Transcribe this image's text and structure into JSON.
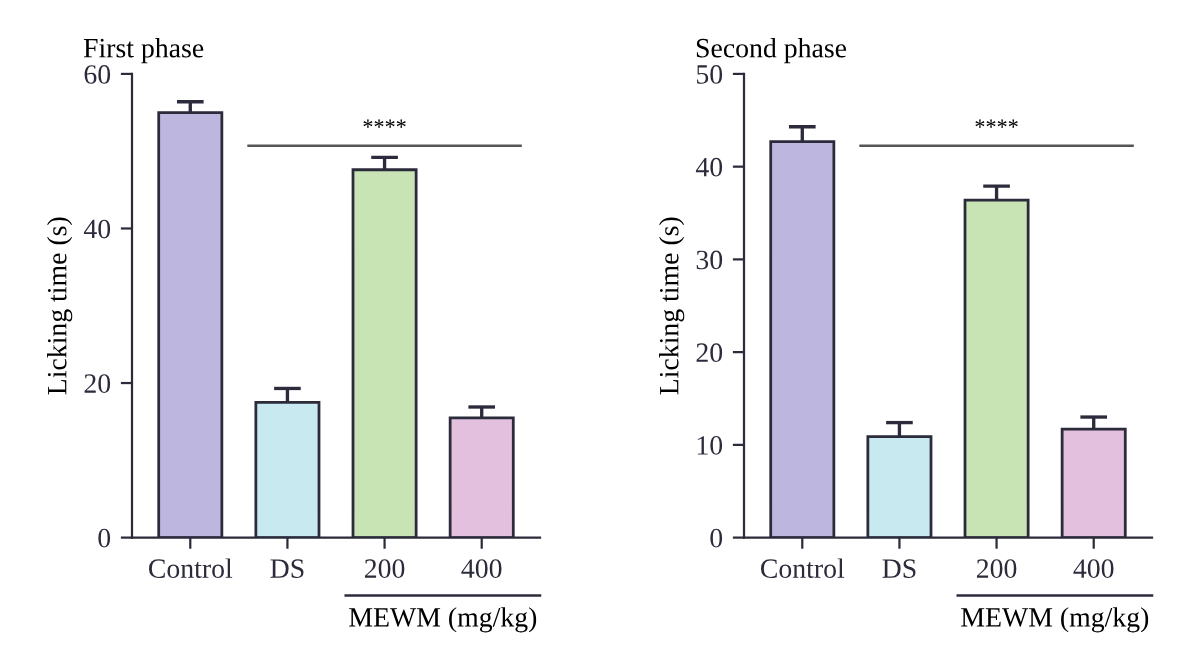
{
  "chart_data": [
    {
      "type": "bar",
      "title": "First phase",
      "ylabel": "Licking time (s)",
      "categories": [
        "Control",
        "DS",
        "200",
        "400"
      ],
      "values": [
        55,
        17.5,
        47.6,
        15.5
      ],
      "colors": [
        "#bdb7df",
        "#c9e9f1",
        "#c8e4b4",
        "#e2c0de"
      ],
      "errors": [
        [
          55,
          56.4
        ],
        [
          17.5,
          19.3
        ],
        [
          47.6,
          49.2
        ],
        [
          15.5,
          16.9
        ]
      ],
      "ylim": [
        0,
        60
      ],
      "yticks": [
        0,
        20,
        40,
        60
      ],
      "grid": false,
      "legend": false,
      "annotations": [
        "****",
        "MEWM (mg/kg)"
      ]
    },
    {
      "type": "bar",
      "title": "Second phase",
      "ylabel": "Licking time (s)",
      "categories": [
        "Control",
        "DS",
        "200",
        "400"
      ],
      "values": [
        42.7,
        10.9,
        36.4,
        11.7
      ],
      "colors": [
        "#bdb7df",
        "#c9e9f1",
        "#c8e4b4",
        "#e2c0de"
      ],
      "errors": [
        [
          42.7,
          44.3
        ],
        [
          10.9,
          12.4
        ],
        [
          36.4,
          37.9
        ],
        [
          11.7,
          13.0
        ]
      ],
      "ylim": [
        0,
        50
      ],
      "yticks": [
        0,
        10,
        20,
        30,
        40,
        50
      ],
      "grid": false,
      "legend": false,
      "annotations": [
        "****",
        "MEWM (mg/kg)"
      ]
    }
  ]
}
